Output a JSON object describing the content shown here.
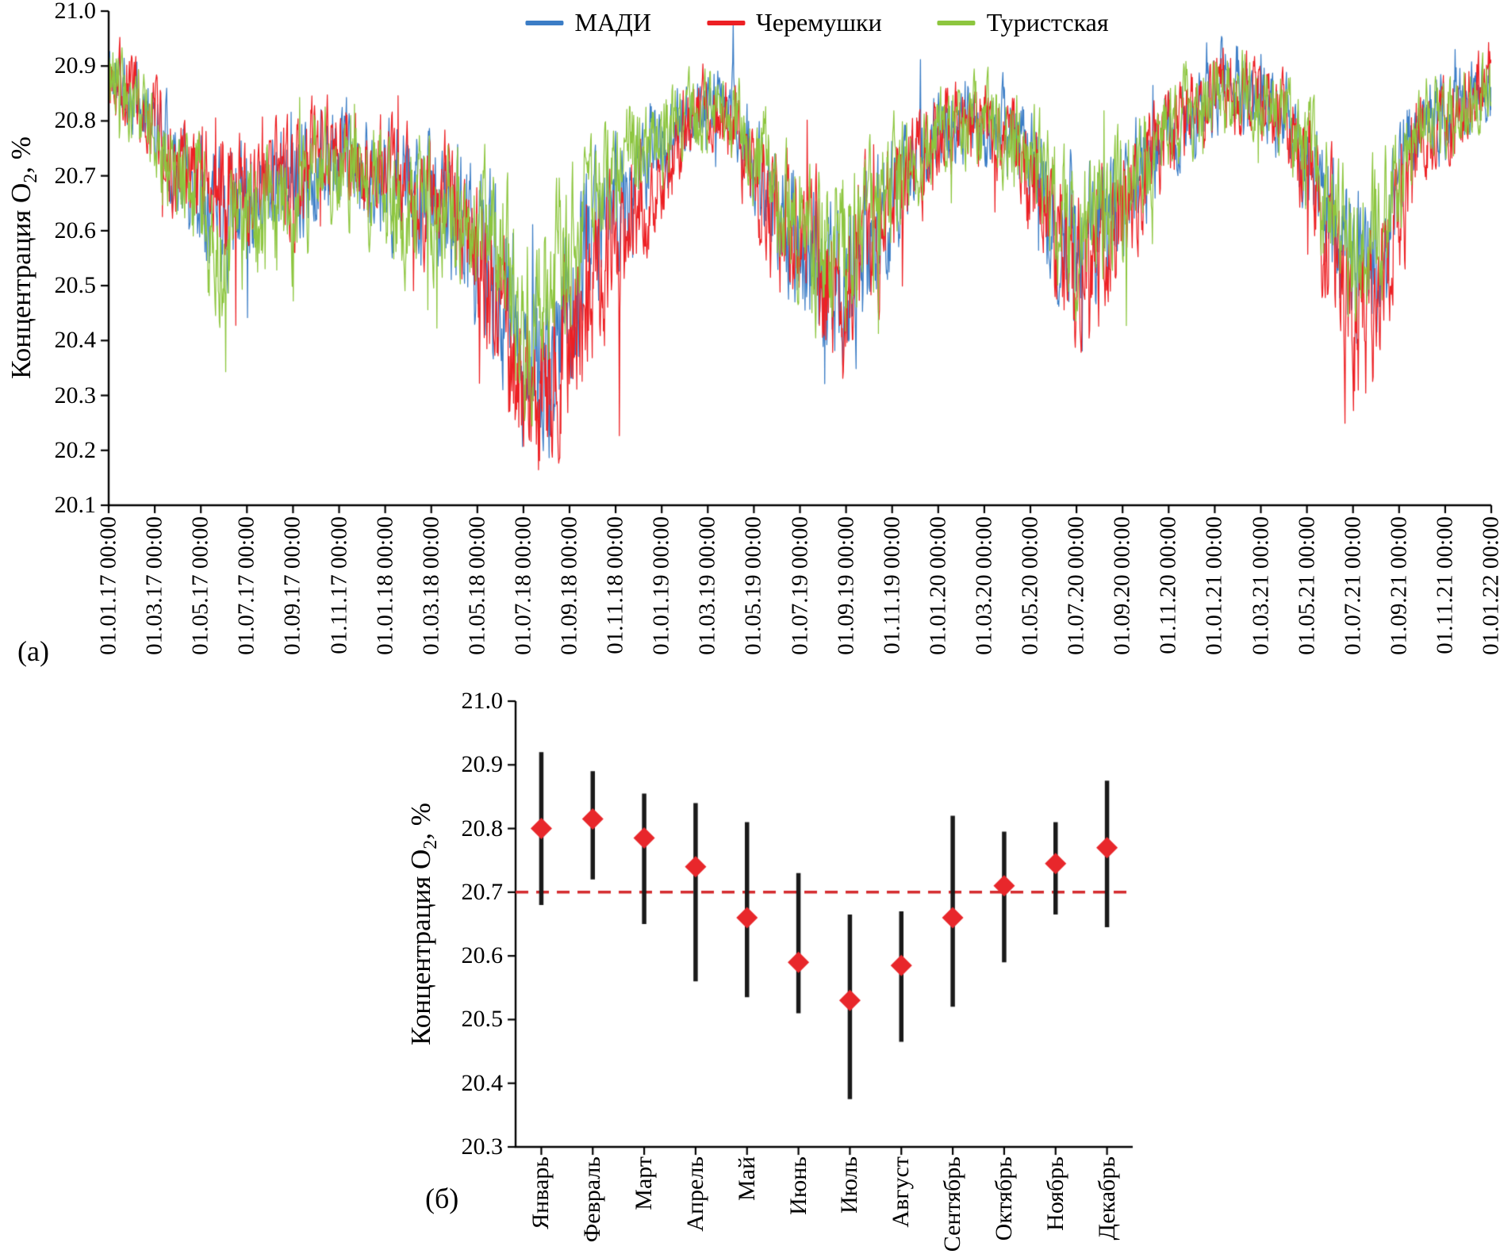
{
  "figure": {
    "background": "#ffffff",
    "panel_a_label": "(а)",
    "panel_b_label": "(б)"
  },
  "chart_data": [
    {
      "type": "line",
      "panel": "а",
      "title": "",
      "ylabel_pre": "Концентрация О",
      "ylabel_sub": "2",
      "ylabel_post": ", %",
      "ylim": [
        20.1,
        21.0
      ],
      "ytick_labels": [
        "21.0",
        "20.9",
        "20.8",
        "20.7",
        "20.6",
        "20.5",
        "20.4",
        "20.3",
        "20.2",
        "20.1"
      ],
      "xtick_labels": [
        "01.01.17 00:00",
        "01.03.17 00:00",
        "01.05.17 00:00",
        "01.07.17 00:00",
        "01.09.17 00:00",
        "01.11.17 00:00",
        "01.01.18 00:00",
        "01.03.18 00:00",
        "01.05.18 00:00",
        "01.07.18 00:00",
        "01.09.18 00:00",
        "01.11.18 00:00",
        "01.01.19 00:00",
        "01.03.19 00:00",
        "01.05.19 00:00",
        "01.07.19 00:00",
        "01.09.19 00:00",
        "01.11.19 00:00",
        "01.01.20 00:00",
        "01.03.20 00:00",
        "01.05.20 00:00",
        "01.07.20 00:00",
        "01.09.20 00:00",
        "01.11.20 00:00",
        "01.01.21 00:00",
        "01.03.21 00:00",
        "01.05.21 00:00",
        "01.07.21 00:00",
        "01.09.21 00:00",
        "01.11.21 00:00",
        "01.01.22 00:00"
      ],
      "grid": false,
      "legend_position": "top",
      "legend": [
        {
          "name": "МАДИ",
          "color": "#3b7dc6"
        },
        {
          "name": "Черемушки",
          "color": "#ed2024"
        },
        {
          "name": "Туристская",
          "color": "#8dc63f"
        }
      ],
      "series": [
        {
          "name": "МАДИ",
          "color": "#3b7dc6",
          "monthly_mean_values": [
            20.88,
            20.85,
            20.8,
            20.72,
            20.68,
            20.63,
            20.66,
            20.7,
            20.67,
            20.72,
            20.74,
            20.7,
            20.7,
            20.66,
            20.66,
            20.62,
            20.58,
            20.5,
            20.38,
            20.35,
            20.45,
            20.6,
            20.65,
            20.72,
            20.75,
            20.8,
            20.84,
            20.82,
            20.72,
            20.62,
            20.58,
            20.52,
            20.5,
            20.58,
            20.65,
            20.72,
            20.78,
            20.8,
            20.79,
            20.77,
            20.72,
            20.62,
            20.58,
            20.6,
            20.65,
            20.72,
            20.78,
            20.82,
            20.85,
            20.87,
            20.86,
            20.8,
            20.72,
            20.62,
            20.5,
            20.52,
            20.7,
            20.8,
            20.8,
            20.84,
            20.86
          ]
        },
        {
          "name": "Черемушки",
          "color": "#ed2024",
          "monthly_mean_values": [
            20.87,
            20.86,
            20.8,
            20.72,
            20.7,
            20.66,
            20.66,
            20.7,
            20.66,
            20.74,
            20.78,
            20.72,
            20.7,
            20.66,
            20.68,
            20.62,
            20.56,
            20.44,
            20.3,
            20.3,
            20.42,
            20.52,
            20.58,
            20.66,
            20.72,
            20.78,
            20.82,
            20.8,
            20.7,
            20.62,
            20.58,
            20.5,
            20.48,
            20.56,
            20.64,
            20.72,
            20.78,
            20.8,
            20.78,
            20.76,
            20.7,
            20.6,
            20.52,
            20.56,
            20.62,
            20.72,
            20.78,
            20.82,
            20.84,
            20.86,
            20.85,
            20.8,
            20.72,
            20.6,
            20.44,
            20.46,
            20.64,
            20.78,
            20.8,
            20.84,
            20.88
          ]
        },
        {
          "name": "Туристская",
          "color": "#8dc63f",
          "monthly_mean_values": [
            20.86,
            20.84,
            20.78,
            20.7,
            20.62,
            20.58,
            20.6,
            20.66,
            20.64,
            20.7,
            20.72,
            20.68,
            20.68,
            20.64,
            20.66,
            20.62,
            20.6,
            20.55,
            20.45,
            20.48,
            20.58,
            20.66,
            20.7,
            20.74,
            20.76,
            20.8,
            20.82,
            20.8,
            20.74,
            20.66,
            20.62,
            20.56,
            20.55,
            20.62,
            20.68,
            20.74,
            20.78,
            20.8,
            20.79,
            20.77,
            20.72,
            20.64,
            20.58,
            20.62,
            20.66,
            20.74,
            20.78,
            20.82,
            20.84,
            20.86,
            20.84,
            20.8,
            20.74,
            20.66,
            20.55,
            20.58,
            20.72,
            20.8,
            20.8,
            20.84,
            20.86
          ]
        }
      ],
      "noise_model": {
        "seed": 11,
        "points_per_series": 2600,
        "amp_base": 0.075,
        "amp_gain": 0.28,
        "amp_max": 0.16,
        "persistence": 0.55
      }
    },
    {
      "type": "scatter",
      "panel": "б",
      "title": "",
      "ylabel_pre": "Концентрация О",
      "ylabel_sub": "2",
      "ylabel_post": ", %",
      "ylim": [
        20.3,
        21.0
      ],
      "ytick_labels": [
        "21.0",
        "20.9",
        "20.8",
        "20.7",
        "20.6",
        "20.5",
        "20.4",
        "20.3"
      ],
      "categories": [
        "Январь",
        "Февраль",
        "Март",
        "Апрель",
        "Май",
        "Июнь",
        "Июль",
        "Август",
        "Сентябрь",
        "Октябрь",
        "Ноябрь",
        "Декабрь"
      ],
      "means": [
        20.8,
        20.815,
        20.785,
        20.74,
        20.66,
        20.59,
        20.53,
        20.585,
        20.66,
        20.71,
        20.745,
        20.77
      ],
      "lows": [
        20.68,
        20.72,
        20.65,
        20.56,
        20.535,
        20.51,
        20.375,
        20.465,
        20.52,
        20.59,
        20.665,
        20.645
      ],
      "highs": [
        20.92,
        20.89,
        20.855,
        20.84,
        20.81,
        20.73,
        20.665,
        20.67,
        20.82,
        20.795,
        20.81,
        20.875
      ],
      "reference_line": {
        "value": 20.7,
        "color": "#d42b2e",
        "style": "dashed"
      },
      "marker": {
        "shape": "diamond",
        "color": "#e8272b"
      },
      "errorbar_color": "#1a1a1a",
      "grid": false
    }
  ]
}
